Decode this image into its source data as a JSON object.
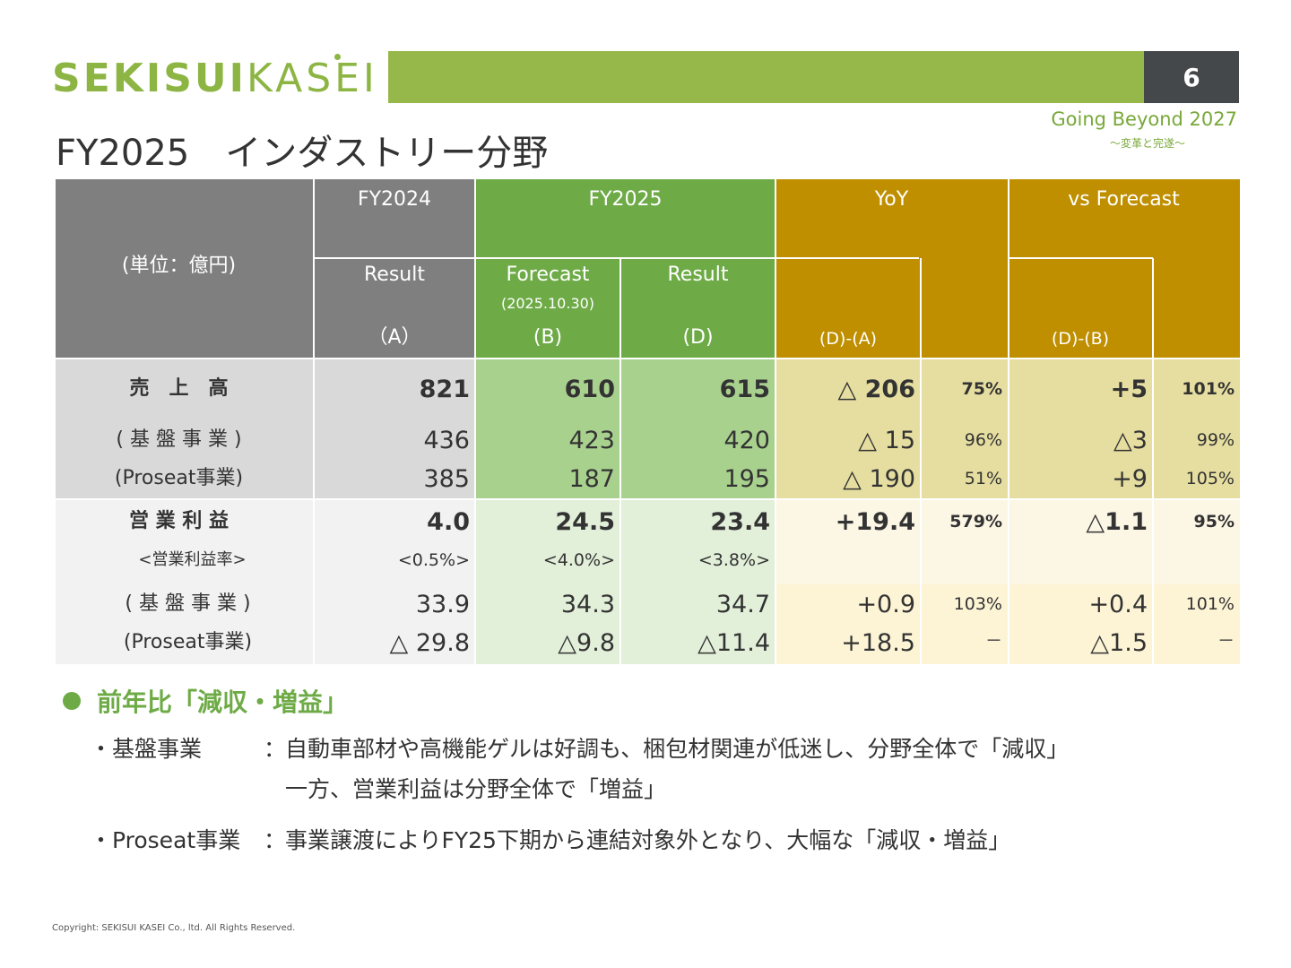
{
  "header": {
    "logo_bold": "SEKISUI",
    "logo_light": "KASEI",
    "page_number": "6",
    "tagline": "Going Beyond 2027",
    "tagline_sub": "～変革と完遂～",
    "title": "FY2025　インダストリー分野"
  },
  "table": {
    "unit_label": "(単位：億円)",
    "col_fy2024": "FY2024",
    "col_fy2025": "FY2025",
    "col_yoy": "YoY",
    "col_vs_forecast": "vs Forecast",
    "sub_result_a": "Result",
    "sub_a": "（A）",
    "sub_forecast": "Forecast",
    "sub_forecast_date": "(2025.10.30)",
    "sub_b": "(B)",
    "sub_result_d": "Result",
    "sub_d": "(D)",
    "sub_d_minus_a": "(D)-(A)",
    "sub_d_minus_b": "(D)-(B)",
    "rows": [
      {
        "label": "売　上　高",
        "a": "821",
        "b": "610",
        "d": "615",
        "yoy": "△ 206",
        "yoy_pct": "75%",
        "vsf": "+5",
        "vsf_pct": "101%"
      },
      {
        "label": "( 基 盤 事 業 )",
        "a": "436",
        "b": "423",
        "d": "420",
        "yoy": "△ 15",
        "yoy_pct": "96%",
        "vsf": "△3",
        "vsf_pct": "99%"
      },
      {
        "label": "(Proseat事業)",
        "a": "385",
        "b": "187",
        "d": "195",
        "yoy": "△ 190",
        "yoy_pct": "51%",
        "vsf": "+9",
        "vsf_pct": "105%"
      },
      {
        "label": "営 業 利 益",
        "a": "4.0",
        "b": "24.5",
        "d": "23.4",
        "yoy": "+19.4",
        "yoy_pct": "579%",
        "vsf": "△1.1",
        "vsf_pct": "95%"
      },
      {
        "label": "<営業利益率>",
        "a": "<0.5%>",
        "b": "<4.0%>",
        "d": "<3.8%>",
        "yoy": "",
        "yoy_pct": "",
        "vsf": "",
        "vsf_pct": ""
      },
      {
        "label": "( 基 盤 事 業 )",
        "a": "33.9",
        "b": "34.3",
        "d": "34.7",
        "yoy": "+0.9",
        "yoy_pct": "103%",
        "vsf": "+0.4",
        "vsf_pct": "101%"
      },
      {
        "label": "(Proseat事業)",
        "a": "△ 29.8",
        "b": "△9.8",
        "d": "△11.4",
        "yoy": "+18.5",
        "yoy_pct": "－",
        "vsf": "△1.5",
        "vsf_pct": "－"
      }
    ]
  },
  "summary": {
    "heading": "前年比「減収・増益」",
    "item1_label": "・基盤事業",
    "item1_sep": "：",
    "item1_line1": "自動車部材や高機能ゲルは好調も、梱包材関連が低迷し、分野全体で「減収」",
    "item1_line2": "一方、営業利益は分野全体で「増益」",
    "item2_label": "・Proseat事業",
    "item2_sep": "：",
    "item2_line1": "事業譲渡によりFY25下期から連結対象外となり、大幅な「減収・増益」"
  },
  "footer": {
    "copyright": "Copyright: SEKISUI KASEI Co., ltd. All Rights Reserved."
  }
}
